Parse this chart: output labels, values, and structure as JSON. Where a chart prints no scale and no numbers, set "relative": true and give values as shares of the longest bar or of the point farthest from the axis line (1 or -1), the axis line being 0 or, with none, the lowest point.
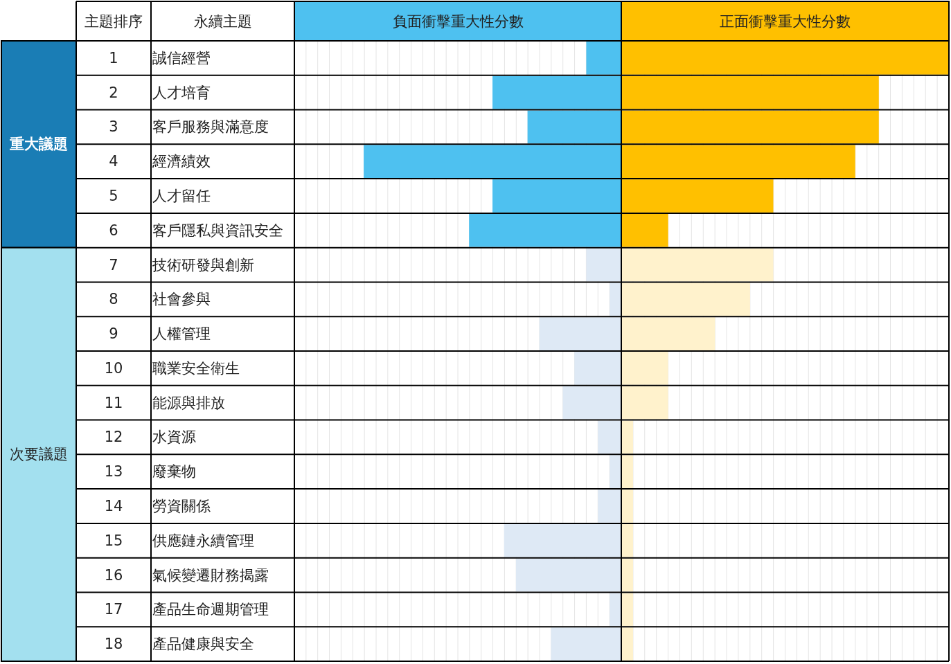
{
  "chart_data": [
    {
      "type": "other",
      "annotations": [
        "主題排序",
        "永續主題",
        "重大議題",
        "次要議題"
      ]
    },
    {
      "type": "bar",
      "orientation": "horizontal",
      "relative": true,
      "title": "負面衝擊重大性分數",
      "grid": "x",
      "categories": [
        "1",
        "2",
        "3",
        "4",
        "5",
        "6",
        "7",
        "8",
        "9",
        "10",
        "11",
        "12",
        "13",
        "14",
        "15",
        "16",
        "17",
        "18"
      ],
      "values": [
        0.136,
        0.5,
        0.364,
        1,
        0.5,
        0.591,
        0.136,
        0.045,
        0.318,
        0.182,
        0.227,
        0.091,
        0.045,
        0.091,
        0.455,
        0.409,
        0.045,
        0.273
      ],
      "colors": [
        "#4ec1f0",
        "#4ec1f0",
        "#4ec1f0",
        "#4ec1f0",
        "#4ec1f0",
        "#4ec1f0",
        "#dee9f5",
        "#dee9f5",
        "#dee9f5",
        "#dee9f5",
        "#dee9f5",
        "#dee9f5",
        "#dee9f5",
        "#dee9f5",
        "#dee9f5",
        "#dee9f5",
        "#dee9f5",
        "#dee9f5"
      ]
    },
    {
      "type": "bar",
      "orientation": "horizontal",
      "relative": true,
      "title": "正面衝擊重大性分數",
      "grid": "x",
      "categories": [
        "誠信經營",
        "人才培育",
        "客戶服務與滿意度",
        "經濟績效",
        "人才留任",
        "客戶隱私與資訊安全",
        "技術研發與創新",
        "社會參與",
        "人權管理",
        "職業安全衛生",
        "能源與排放",
        "水資源",
        "廢棄物",
        "勞資關係",
        "供應鏈永續管理",
        "氣候變遷財務揭露",
        "產品生命週期管理",
        "產品健康與安全"
      ],
      "values": [
        1,
        0.786,
        0.786,
        0.714,
        0.464,
        0.143,
        0.464,
        0.393,
        0.286,
        0.143,
        0.143,
        0.036,
        0.036,
        0.036,
        0.036,
        0.036,
        0.036,
        0.036
      ],
      "colors": [
        "#ffc000",
        "#ffc000",
        "#ffc000",
        "#ffc000",
        "#ffc000",
        "#ffc000",
        "#fff2cc",
        "#fff2cc",
        "#fff2cc",
        "#fff2cc",
        "#fff2cc",
        "#fff2cc",
        "#fff2cc",
        "#fff2cc",
        "#fff2cc",
        "#fff2cc",
        "#fff2cc",
        "#fff2cc"
      ]
    }
  ]
}
